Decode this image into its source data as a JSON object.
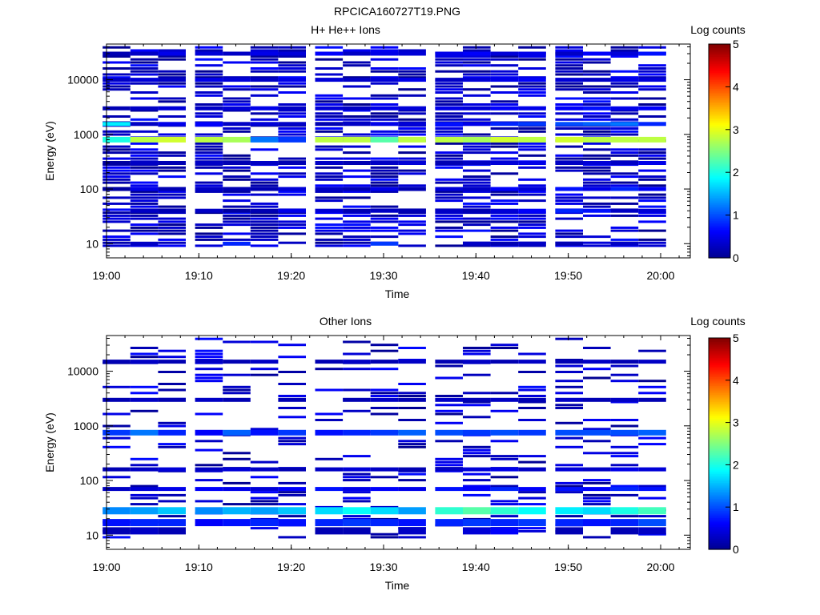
{
  "figure_title": "RPCICA160727T19.PNG",
  "colormap": [
    "#00008f",
    "#0000ff",
    "#0080ff",
    "#00ffff",
    "#80ff80",
    "#ffff00",
    "#ff8000",
    "#ff0000",
    "#800000"
  ],
  "chart_data": [
    {
      "type": "heatmap",
      "title": "H+ He++ Ions",
      "xlabel": "Time",
      "ylabel": "Energy (eV)",
      "xlim": [
        "19:00",
        "20:03"
      ],
      "ylim": [
        5.5,
        45000
      ],
      "yscale": "log",
      "x_tick_labels": [
        "19:00",
        "19:10",
        "19:20",
        "19:30",
        "19:40",
        "19:50",
        "20:00"
      ],
      "y_tick_labels": [
        "10",
        "100",
        "1000",
        "10000"
      ],
      "colorbar": {
        "label": "Log counts",
        "range": [
          0,
          5
        ],
        "tick_labels": [
          "0",
          "1",
          "2",
          "3",
          "4",
          "5"
        ]
      },
      "time_bins": [
        "19:01",
        "19:04",
        "19:07",
        "19:11",
        "19:14",
        "19:17",
        "19:20",
        "19:24",
        "19:27",
        "19:30",
        "19:33",
        "19:37",
        "19:40",
        "19:43",
        "19:46",
        "19:50",
        "19:53",
        "19:56",
        "19:59"
      ],
      "bands": [
        {
          "energy": 800,
          "values": [
            2.0,
            2.8,
            2.9,
            2.8,
            2.7,
            1.2,
            0.9,
            2.8,
            2.8,
            2.3,
            2.8,
            2.8,
            2.7,
            2.9,
            2.8,
            2.9,
            2.8,
            2.8,
            2.8
          ]
        },
        {
          "energy": 1550,
          "values": [
            1.8,
            0.3,
            0.5,
            0.6,
            0.3,
            0.4,
            0.3,
            0.2,
            0.3,
            0.5,
            0.4,
            0.7,
            0.5,
            0.8,
            0.9,
            1.0,
            1.1,
            1.2,
            0.8
          ]
        },
        {
          "energy": 30000,
          "values": [
            0.2,
            0.3,
            0.5,
            0.4,
            0.3,
            0.5,
            0.4,
            0.6,
            0.3,
            0.5,
            0.4,
            0.5,
            0.6,
            0.4,
            0.5,
            0.3,
            0.6,
            0.4,
            0.7
          ]
        },
        {
          "energy": 10000,
          "values": [
            0.3,
            0.4,
            0.3,
            0.5,
            0.4,
            0.3,
            0.5,
            0.4,
            0.3,
            0.4,
            0.5,
            0.3,
            0.4,
            0.5,
            0.6,
            0.4,
            0.3,
            0.5,
            0.4
          ]
        },
        {
          "energy": 3000,
          "values": [
            0.2,
            0.3,
            0.4,
            0.3,
            0.4,
            0.5,
            0.3,
            0.4,
            0.3,
            0.5,
            0.4,
            0.5,
            0.4,
            0.6,
            0.5,
            0.6,
            0.7,
            0.5,
            0.6
          ]
        },
        {
          "energy": 300,
          "values": [
            0.1,
            0.3,
            0.2,
            0.3,
            0.2,
            0.3,
            0.2,
            0.3,
            0.2,
            0.3,
            0.4,
            0.2,
            0.3,
            0.4,
            0.5,
            0.3,
            0.4,
            0.3,
            0.5
          ]
        },
        {
          "energy": 100,
          "values": [
            0.1,
            0.5,
            0.2,
            0.3,
            0.2,
            0.2,
            0.4,
            0.3,
            0.2,
            0.5,
            0.2,
            0.4,
            0.3,
            0.6,
            0.4,
            0.7,
            0.5,
            0.8,
            0.6
          ]
        },
        {
          "energy": 40,
          "values": [
            0,
            0.3,
            0.2,
            0.3,
            0.1,
            0.2,
            0.5,
            0.4,
            0.2,
            0.3,
            0.2,
            0.3,
            0.2,
            0.4,
            0.6,
            0.8,
            0.7,
            0.3,
            0.4
          ]
        },
        {
          "energy": 10,
          "values": [
            0,
            0.3,
            0,
            0,
            0.8,
            0,
            0,
            0,
            0,
            0.9,
            0,
            0,
            0.3,
            0.2,
            0.3,
            0.2,
            0,
            0.3,
            0
          ]
        }
      ]
    },
    {
      "type": "heatmap",
      "title": "Other Ions",
      "xlabel": "Time",
      "ylabel": "Energy (eV)",
      "xlim": [
        "19:00",
        "20:03"
      ],
      "ylim": [
        5.5,
        45000
      ],
      "yscale": "log",
      "x_tick_labels": [
        "19:00",
        "19:10",
        "19:20",
        "19:30",
        "19:40",
        "19:50",
        "20:00"
      ],
      "y_tick_labels": [
        "10",
        "100",
        "1000",
        "10000"
      ],
      "colorbar": {
        "label": "Log counts",
        "range": [
          0,
          5
        ],
        "tick_labels": [
          "0",
          "1",
          "2",
          "3",
          "4",
          "5"
        ]
      },
      "time_bins": [
        "19:01",
        "19:04",
        "19:07",
        "19:11",
        "19:14",
        "19:17",
        "19:20",
        "19:24",
        "19:27",
        "19:30",
        "19:33",
        "19:37",
        "19:40",
        "19:43",
        "19:46",
        "19:50",
        "19:53",
        "19:56",
        "19:59"
      ],
      "bands": [
        {
          "energy": 28,
          "values": [
            1.3,
            1.4,
            1.6,
            1.3,
            1.5,
            1.4,
            1.6,
            1.7,
            1.9,
            1.7,
            1.4,
            2.1,
            2.3,
            2.1,
            1.9,
            1.8,
            1.7,
            2.0,
            2.2
          ]
        },
        {
          "energy": 17,
          "values": [
            0.7,
            0.8,
            0.8,
            0.6,
            0.7,
            0.8,
            0.7,
            0.8,
            0.9,
            0.8,
            0.7,
            0.8,
            0.9,
            0.8,
            0.9,
            0.8,
            0.7,
            0.8,
            1.0
          ]
        },
        {
          "energy": 12,
          "values": [
            0.2,
            0.3,
            0.2,
            0,
            0,
            0,
            0,
            0.2,
            0.2,
            0,
            0.3,
            0,
            0.4,
            0.6,
            0,
            0.2,
            0,
            0.2,
            0.3
          ]
        },
        {
          "energy": 750,
          "values": [
            0.9,
            1.2,
            0.8,
            0.6,
            1.1,
            0.7,
            0.9,
            0.7,
            0.8,
            0.9,
            1.1,
            1.0,
            0.9,
            1.0,
            0.9,
            1.0,
            1.0,
            1.0,
            1.1
          ]
        },
        {
          "energy": 160,
          "values": [
            0.2,
            0.3,
            0.4,
            0.3,
            0.4,
            0.3,
            0.2,
            0.3,
            0.4,
            0.3,
            0.2,
            0.3,
            0.4,
            0.5,
            0.3,
            0.4,
            0.3,
            0.5,
            0.4
          ]
        },
        {
          "energy": 70,
          "values": [
            0.3,
            0.4,
            0.5,
            0.6,
            0.5,
            0.4,
            0.6,
            0.7,
            0.5,
            0.6,
            0.5,
            0.7,
            0.6,
            0.8,
            0.6,
            0.7,
            0.6,
            0.8,
            0.7
          ]
        },
        {
          "energy": 3000,
          "values": [
            0.2,
            0.3,
            0.2,
            0.3,
            0.2,
            0,
            0.2,
            0,
            0.2,
            0.3,
            0.2,
            0.3,
            0.2,
            0.3,
            0.2,
            0.3,
            0.2,
            0.3,
            0.2
          ]
        },
        {
          "energy": 15000,
          "values": [
            0.2,
            0.3,
            0.2,
            0.3,
            0.2,
            0.3,
            0,
            0.2,
            0.3,
            0.2,
            0.3,
            0.2,
            0.3,
            0.2,
            0.3,
            0.2,
            0.3,
            0.2,
            0.3
          ]
        }
      ]
    }
  ]
}
